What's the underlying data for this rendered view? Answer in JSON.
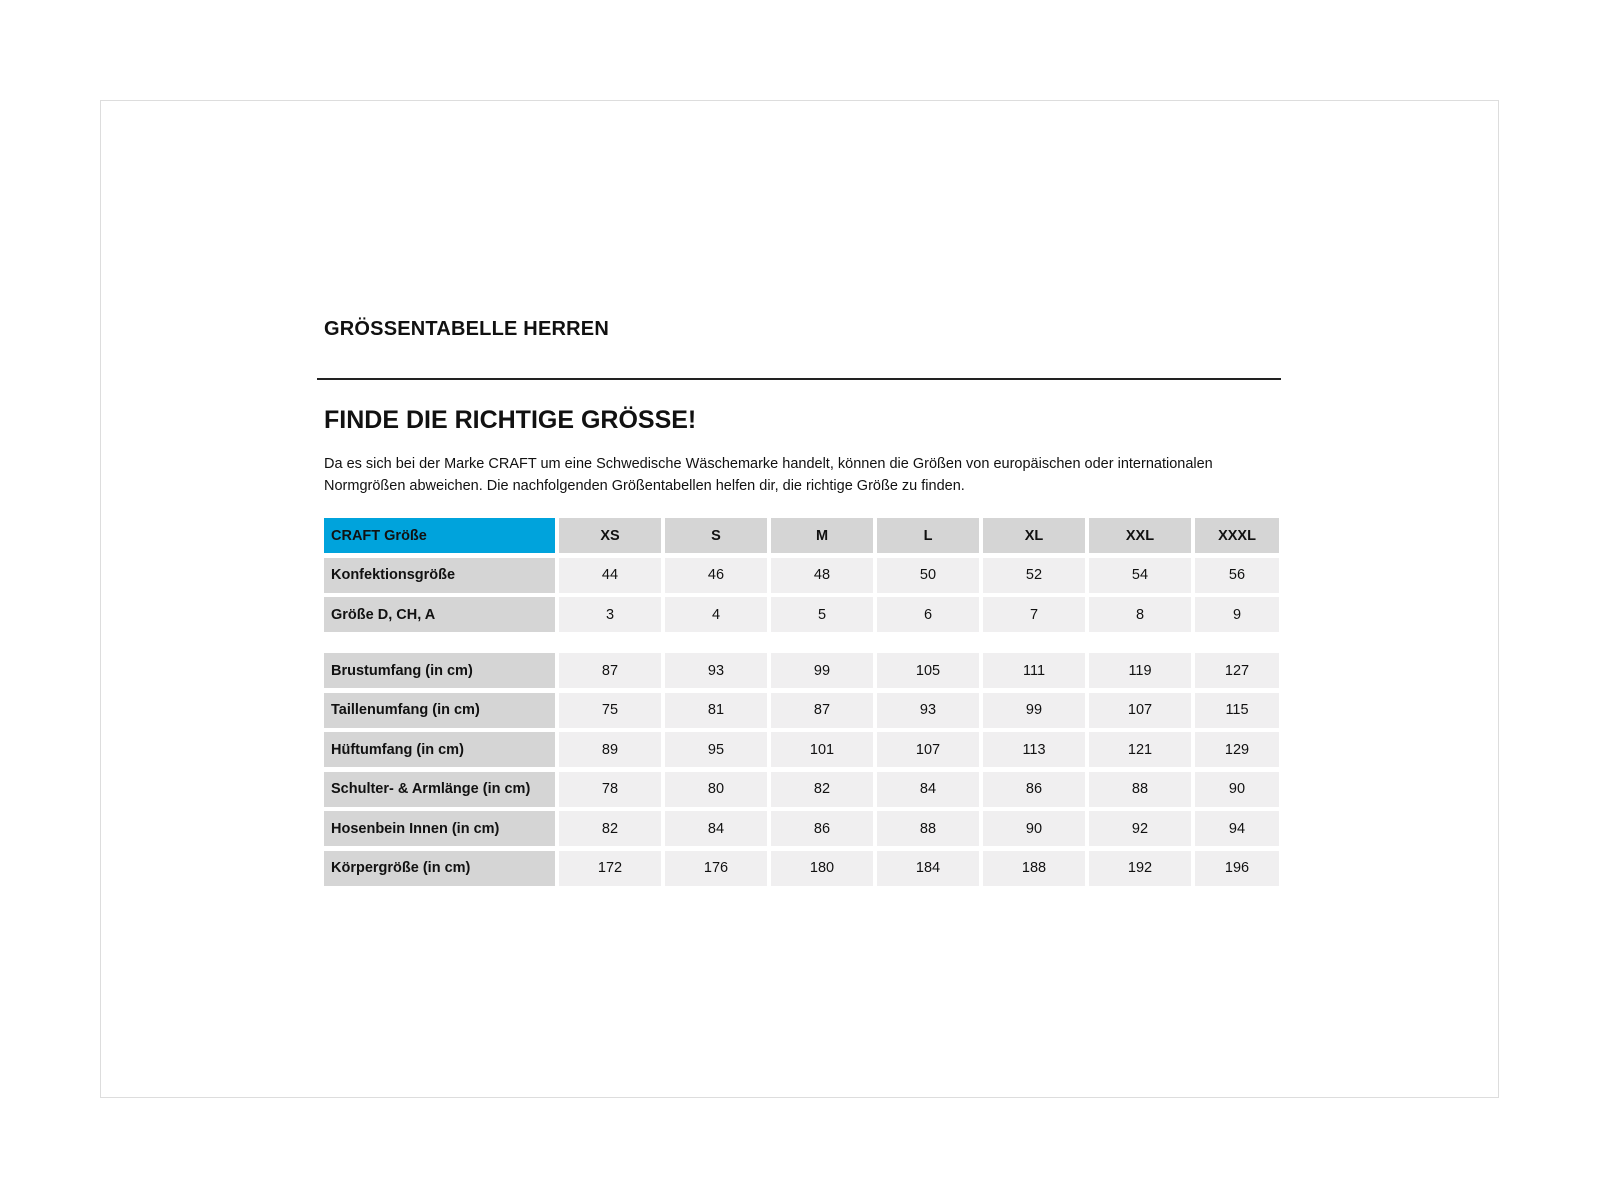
{
  "title": "GRÖSSENTABELLE HERREN",
  "heading": "FINDE DIE RICHTIGE GRÖSSE!",
  "intro": "Da es sich bei der Marke CRAFT um eine Schwedische Wäschemarke handelt, können die Größen von europäischen oder internationalen Normgrößen abweichen. Die nachfolgenden Größentabellen helfen dir, die richtige Größe zu finden.",
  "colors": {
    "accent": "#00a3dc",
    "label_bg": "#d5d5d5",
    "cell_bg": "#f0eff0"
  },
  "table": {
    "header_label": "CRAFT Größe",
    "sizes": [
      "XS",
      "S",
      "M",
      "L",
      "XL",
      "XXL",
      "XXXL"
    ],
    "rows": [
      {
        "label": "Konfektionsgröße",
        "values": [
          "44",
          "46",
          "48",
          "50",
          "52",
          "54",
          "56"
        ]
      },
      {
        "label": "Größe D, CH, A",
        "values": [
          "3",
          "4",
          "5",
          "6",
          "7",
          "8",
          "9"
        ]
      },
      {
        "label": "Brustumfang (in cm)",
        "values": [
          "87",
          "93",
          "99",
          "105",
          "111",
          "119",
          "127"
        ]
      },
      {
        "label": "Taillenumfang (in cm)",
        "values": [
          "75",
          "81",
          "87",
          "93",
          "99",
          "107",
          "115"
        ]
      },
      {
        "label": "Hüftumfang (in cm)",
        "values": [
          "89",
          "95",
          "101",
          "107",
          "113",
          "121",
          "129"
        ]
      },
      {
        "label": "Schulter- & Armlänge (in cm)",
        "values": [
          "78",
          "80",
          "82",
          "84",
          "86",
          "88",
          "90"
        ]
      },
      {
        "label": "Hosenbein Innen (in cm)",
        "values": [
          "82",
          "84",
          "86",
          "88",
          "90",
          "92",
          "94"
        ]
      },
      {
        "label": "Körpergröße (in cm)",
        "values": [
          "172",
          "176",
          "180",
          "184",
          "188",
          "192",
          "196"
        ]
      }
    ]
  }
}
